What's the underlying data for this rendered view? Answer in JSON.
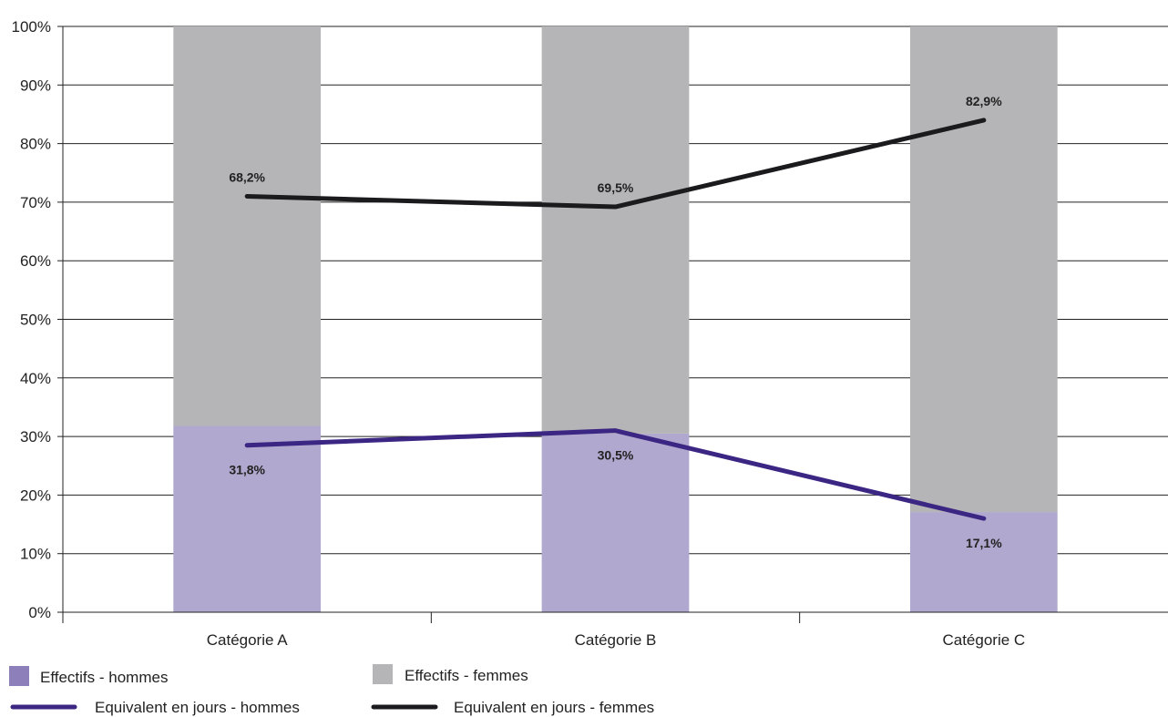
{
  "chart_data": {
    "type": "bar",
    "stacked": true,
    "categories": [
      "Catégorie A",
      "Catégorie B",
      "Catégorie C"
    ],
    "ylim": [
      0,
      100
    ],
    "yticks": [
      0,
      10,
      20,
      30,
      40,
      50,
      60,
      70,
      80,
      90,
      100
    ],
    "ytick_suffix": "%",
    "grid": true,
    "legend_position": "bottom-left",
    "bar_series": [
      {
        "name": "Effectifs - hommes",
        "color": "#b0a8ce",
        "values": [
          31.8,
          30.5,
          17.1
        ]
      },
      {
        "name": "Effectifs - femmes",
        "color": "#b5b4b6",
        "values": [
          68.2,
          69.5,
          82.9
        ]
      }
    ],
    "line_series": [
      {
        "name": "Equivalent en jours - hommes",
        "color": "#3c2683",
        "values": [
          28.5,
          31,
          16
        ],
        "labels": [
          "31,8%",
          "30,5%",
          "17,1%"
        ]
      },
      {
        "name": "Equivalent en jours - femmes",
        "color": "#1b1a1c",
        "values": [
          71,
          69.2,
          84
        ],
        "labels": [
          "68,2%",
          "69,5%",
          "82,9%"
        ]
      }
    ],
    "legend_swatch_colors": {
      "bar_men": "#8c7fba",
      "bar_women": "#b5b4b6"
    }
  }
}
